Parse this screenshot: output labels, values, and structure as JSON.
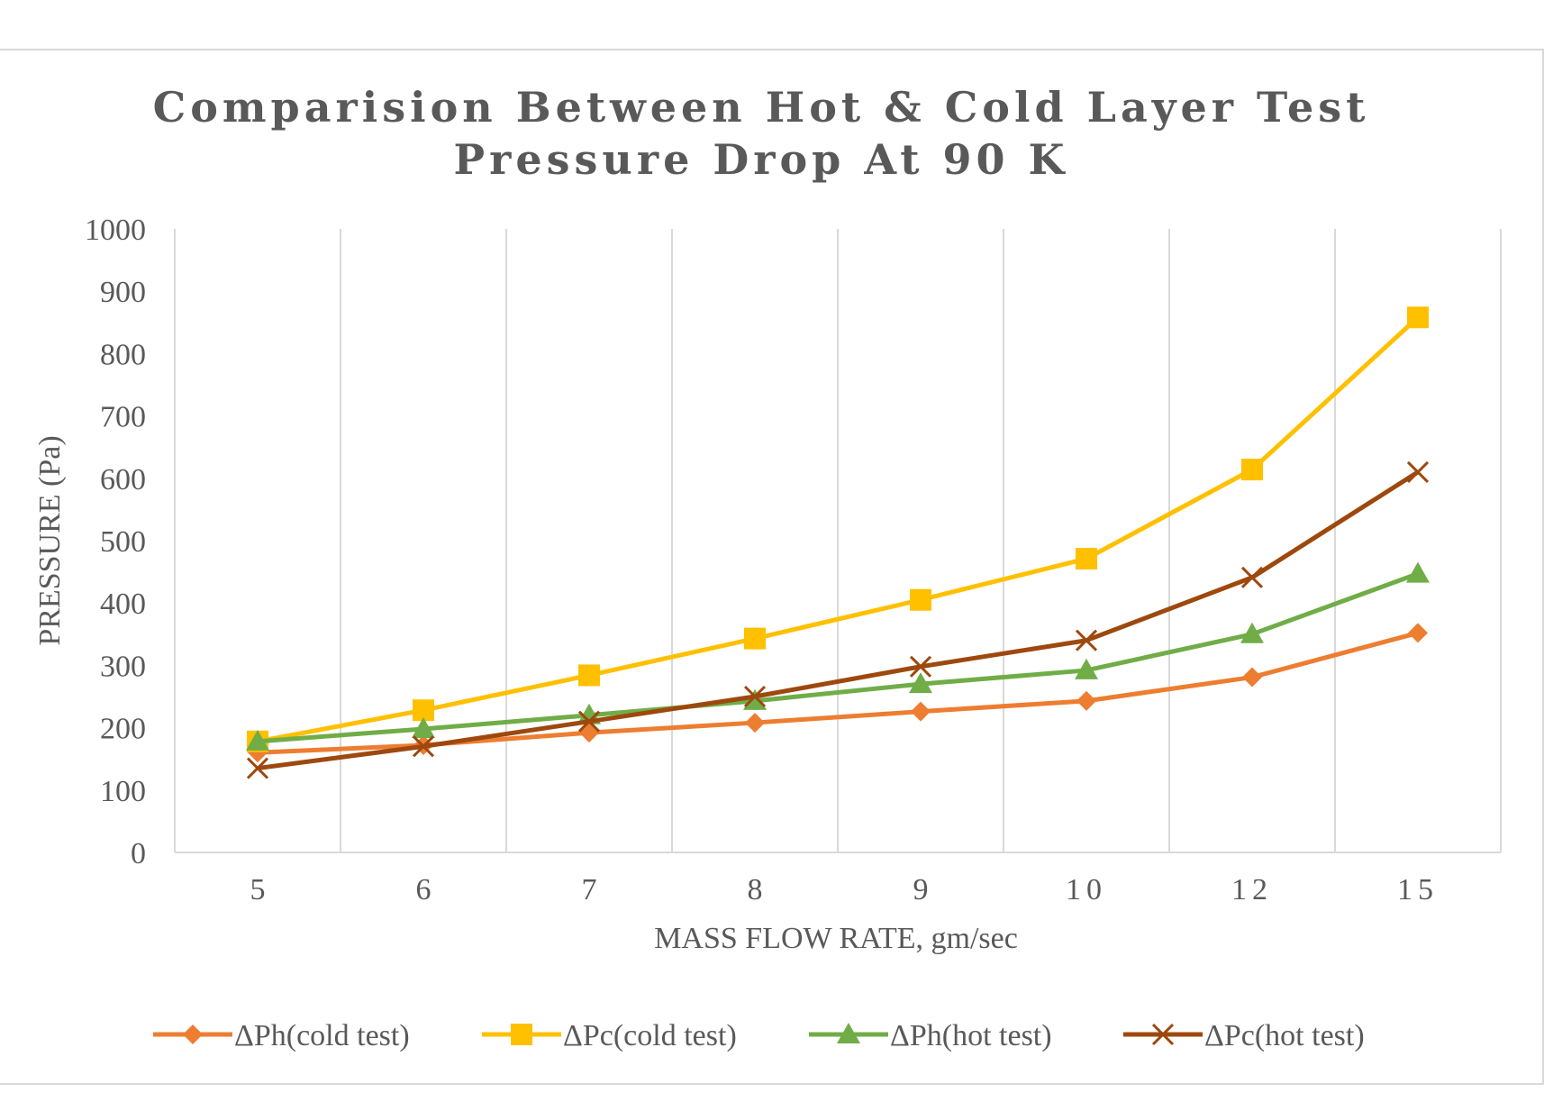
{
  "chart_data": {
    "type": "line",
    "title_lines": [
      "Comparision Between Hot & Cold Layer Test",
      "Pressure Drop At 90 K"
    ],
    "xlabel": "MASS FLOW RATE, gm/sec",
    "ylabel": "PRESSURE (Pa)",
    "categories": [
      "5",
      "6",
      "7",
      "8",
      "9",
      "10",
      "12",
      "15"
    ],
    "ylim": [
      0,
      1000
    ],
    "yticks": [
      0,
      100,
      200,
      300,
      400,
      500,
      600,
      700,
      800,
      900,
      1000
    ],
    "grid": "vertical",
    "legend_position": "bottom",
    "series": [
      {
        "name": "ΔPh(cold test)",
        "color": "#ed7d31",
        "marker": "diamond",
        "values": [
          160,
          172,
          192,
          208,
          226,
          243,
          281,
          352
        ]
      },
      {
        "name": "ΔPc(cold test)",
        "color": "#ffc000",
        "marker": "square",
        "values": [
          178,
          228,
          284,
          343,
          405,
          471,
          614,
          858
        ]
      },
      {
        "name": "ΔPh(hot test)",
        "color": "#70ad47",
        "marker": "triangle",
        "values": [
          178,
          198,
          220,
          243,
          270,
          292,
          350,
          447
        ]
      },
      {
        "name": "ΔPc(hot test)",
        "color": "#9e480e",
        "marker": "x",
        "values": [
          135,
          170,
          210,
          250,
          298,
          340,
          441,
          610
        ]
      }
    ]
  }
}
